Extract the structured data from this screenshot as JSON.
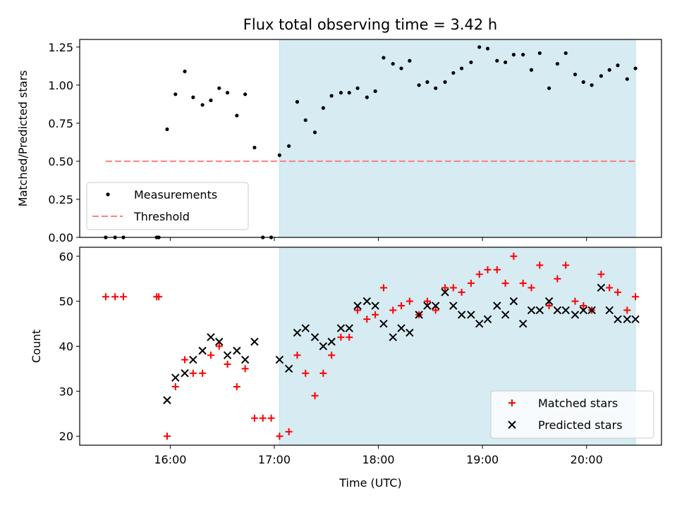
{
  "title": "Flux total observing time = 3.42 h",
  "colors": {
    "measurement": "#000000",
    "threshold": "#ff7f7f",
    "matched": "#ff0000",
    "predicted": "#000000",
    "span": "#add8e6"
  },
  "chart_data": [
    {
      "type": "scatter",
      "ylabel": "Matched/Predicted stars",
      "xlim_hours": [
        15.13,
        20.72
      ],
      "ylim": [
        0,
        1.3
      ],
      "yticks": [
        "0.00",
        "0.25",
        "0.50",
        "0.75",
        "1.00",
        "1.25"
      ],
      "shaded_span_hours": [
        17.05,
        20.47
      ],
      "legend": {
        "position": "lower left",
        "entries": [
          "Measurements",
          "Threshold"
        ]
      },
      "threshold": {
        "name": "Threshold",
        "y": 0.5,
        "x_start": 15.38,
        "x_end": 20.47
      },
      "series": [
        {
          "name": "Measurements",
          "marker": "dot",
          "points": [
            [
              15.38,
              0.0
            ],
            [
              15.47,
              0.0
            ],
            [
              15.55,
              0.0
            ],
            [
              15.87,
              0.0
            ],
            [
              15.89,
              0.0
            ],
            [
              15.97,
              0.71
            ],
            [
              16.05,
              0.94
            ],
            [
              16.14,
              1.09
            ],
            [
              16.22,
              0.92
            ],
            [
              16.31,
              0.87
            ],
            [
              16.39,
              0.9
            ],
            [
              16.47,
              0.98
            ],
            [
              16.55,
              0.95
            ],
            [
              16.64,
              0.8
            ],
            [
              16.72,
              0.94
            ],
            [
              16.81,
              0.59
            ],
            [
              16.89,
              0.0
            ],
            [
              16.97,
              0.0
            ],
            [
              17.05,
              0.54
            ],
            [
              17.14,
              0.6
            ],
            [
              17.22,
              0.89
            ],
            [
              17.3,
              0.77
            ],
            [
              17.39,
              0.69
            ],
            [
              17.47,
              0.85
            ],
            [
              17.55,
              0.93
            ],
            [
              17.64,
              0.95
            ],
            [
              17.72,
              0.95
            ],
            [
              17.8,
              0.98
            ],
            [
              17.89,
              0.92
            ],
            [
              17.97,
              0.96
            ],
            [
              18.05,
              1.18
            ],
            [
              18.14,
              1.14
            ],
            [
              18.22,
              1.11
            ],
            [
              18.3,
              1.16
            ],
            [
              18.39,
              1.0
            ],
            [
              18.47,
              1.02
            ],
            [
              18.55,
              0.98
            ],
            [
              18.64,
              1.02
            ],
            [
              18.72,
              1.08
            ],
            [
              18.8,
              1.11
            ],
            [
              18.89,
              1.15
            ],
            [
              18.97,
              1.25
            ],
            [
              19.05,
              1.24
            ],
            [
              19.14,
              1.16
            ],
            [
              19.22,
              1.15
            ],
            [
              19.3,
              1.2
            ],
            [
              19.39,
              1.2
            ],
            [
              19.47,
              1.1
            ],
            [
              19.55,
              1.21
            ],
            [
              19.64,
              0.98
            ],
            [
              19.72,
              1.14
            ],
            [
              19.8,
              1.21
            ],
            [
              19.89,
              1.07
            ],
            [
              19.97,
              1.02
            ],
            [
              20.05,
              1.0
            ],
            [
              20.14,
              1.06
            ],
            [
              20.22,
              1.1
            ],
            [
              20.3,
              1.13
            ],
            [
              20.39,
              1.04
            ],
            [
              20.47,
              1.11
            ]
          ]
        }
      ]
    },
    {
      "type": "scatter",
      "xlabel": "Time (UTC)",
      "ylabel": "Count",
      "xlim_hours": [
        15.13,
        20.72
      ],
      "ylim": [
        18,
        62
      ],
      "yticks": [
        "20",
        "30",
        "40",
        "50",
        "60"
      ],
      "xticks": [
        {
          "hour": 16,
          "label": "16:00"
        },
        {
          "hour": 17,
          "label": "17:00"
        },
        {
          "hour": 18,
          "label": "18:00"
        },
        {
          "hour": 19,
          "label": "19:00"
        },
        {
          "hour": 20,
          "label": "20:00"
        }
      ],
      "shaded_span_hours": [
        17.05,
        20.47
      ],
      "legend": {
        "position": "lower right",
        "entries": [
          "Matched stars",
          "Predicted stars"
        ]
      },
      "series": [
        {
          "name": "Matched stars",
          "marker": "plus",
          "points": [
            [
              15.38,
              51
            ],
            [
              15.47,
              51
            ],
            [
              15.55,
              51
            ],
            [
              15.87,
              51
            ],
            [
              15.89,
              51
            ],
            [
              15.97,
              20
            ],
            [
              16.05,
              31
            ],
            [
              16.14,
              37
            ],
            [
              16.22,
              34
            ],
            [
              16.31,
              34
            ],
            [
              16.39,
              38
            ],
            [
              16.47,
              40
            ],
            [
              16.55,
              36
            ],
            [
              16.64,
              31
            ],
            [
              16.72,
              35
            ],
            [
              16.81,
              24
            ],
            [
              16.89,
              24
            ],
            [
              16.97,
              24
            ],
            [
              17.05,
              20
            ],
            [
              17.14,
              21
            ],
            [
              17.22,
              38
            ],
            [
              17.3,
              34
            ],
            [
              17.39,
              29
            ],
            [
              17.47,
              34
            ],
            [
              17.55,
              38
            ],
            [
              17.64,
              42
            ],
            [
              17.72,
              42
            ],
            [
              17.8,
              48
            ],
            [
              17.89,
              46
            ],
            [
              17.97,
              47
            ],
            [
              18.05,
              53
            ],
            [
              18.14,
              48
            ],
            [
              18.22,
              49
            ],
            [
              18.3,
              50
            ],
            [
              18.39,
              47
            ],
            [
              18.47,
              50
            ],
            [
              18.55,
              48
            ],
            [
              18.64,
              53
            ],
            [
              18.72,
              53
            ],
            [
              18.8,
              52
            ],
            [
              18.89,
              54
            ],
            [
              18.97,
              56
            ],
            [
              19.05,
              57
            ],
            [
              19.14,
              57
            ],
            [
              19.22,
              54
            ],
            [
              19.3,
              60
            ],
            [
              19.39,
              54
            ],
            [
              19.47,
              53
            ],
            [
              19.55,
              58
            ],
            [
              19.64,
              49
            ],
            [
              19.72,
              55
            ],
            [
              19.8,
              58
            ],
            [
              19.89,
              50
            ],
            [
              19.97,
              49
            ],
            [
              20.05,
              48
            ],
            [
              20.14,
              56
            ],
            [
              20.22,
              53
            ],
            [
              20.3,
              52
            ],
            [
              20.39,
              48
            ],
            [
              20.47,
              51
            ]
          ]
        },
        {
          "name": "Predicted stars",
          "marker": "x",
          "points": [
            [
              15.97,
              28
            ],
            [
              16.05,
              33
            ],
            [
              16.14,
              34
            ],
            [
              16.22,
              37
            ],
            [
              16.31,
              39
            ],
            [
              16.39,
              42
            ],
            [
              16.47,
              41
            ],
            [
              16.55,
              38
            ],
            [
              16.64,
              39
            ],
            [
              16.72,
              37
            ],
            [
              16.81,
              41
            ],
            [
              17.05,
              37
            ],
            [
              17.14,
              35
            ],
            [
              17.22,
              43
            ],
            [
              17.3,
              44
            ],
            [
              17.39,
              42
            ],
            [
              17.47,
              40
            ],
            [
              17.55,
              41
            ],
            [
              17.64,
              44
            ],
            [
              17.72,
              44
            ],
            [
              17.8,
              49
            ],
            [
              17.89,
              50
            ],
            [
              17.97,
              49
            ],
            [
              18.05,
              45
            ],
            [
              18.14,
              42
            ],
            [
              18.22,
              44
            ],
            [
              18.3,
              43
            ],
            [
              18.39,
              47
            ],
            [
              18.47,
              49
            ],
            [
              18.55,
              49
            ],
            [
              18.64,
              52
            ],
            [
              18.72,
              49
            ],
            [
              18.8,
              47
            ],
            [
              18.89,
              47
            ],
            [
              18.97,
              45
            ],
            [
              19.05,
              46
            ],
            [
              19.14,
              49
            ],
            [
              19.22,
              47
            ],
            [
              19.3,
              50
            ],
            [
              19.39,
              45
            ],
            [
              19.47,
              48
            ],
            [
              19.55,
              48
            ],
            [
              19.64,
              50
            ],
            [
              19.72,
              48
            ],
            [
              19.8,
              48
            ],
            [
              19.89,
              47
            ],
            [
              19.97,
              48
            ],
            [
              20.05,
              48
            ],
            [
              20.14,
              53
            ],
            [
              20.22,
              48
            ],
            [
              20.3,
              46
            ],
            [
              20.39,
              46
            ],
            [
              20.47,
              46
            ]
          ]
        }
      ]
    }
  ]
}
